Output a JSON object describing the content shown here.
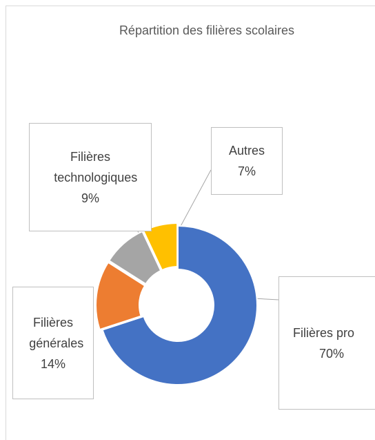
{
  "chart_data": {
    "type": "donut",
    "title": "Répartition des filières scolaires",
    "categories": [
      "Filières pro",
      "Filières générales",
      "Filières technologiques",
      "Autres"
    ],
    "values": [
      70,
      14,
      9,
      7
    ],
    "value_labels": [
      "70%",
      "14%",
      "9%",
      "7%"
    ],
    "colors": [
      "#4472c4",
      "#ed7d31",
      "#a5a5a5",
      "#ffc000"
    ]
  }
}
